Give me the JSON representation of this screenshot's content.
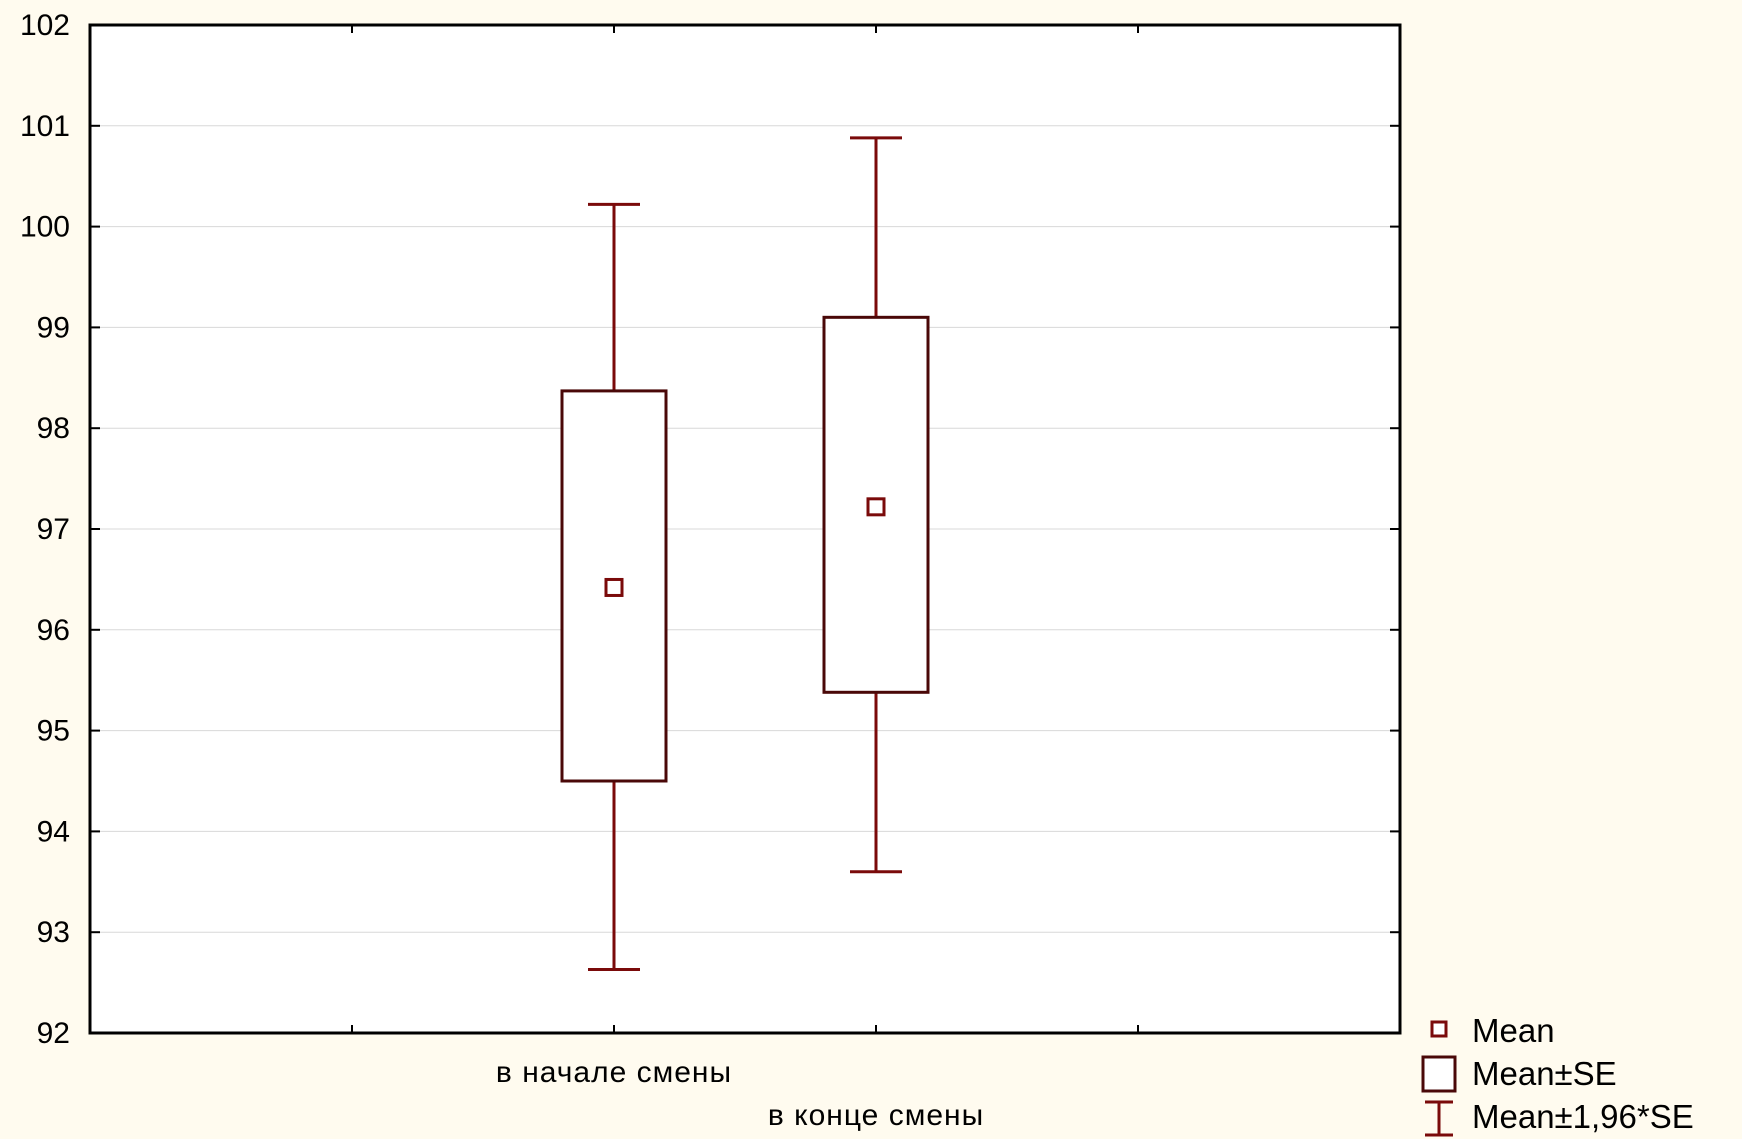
{
  "chart_data": {
    "type": "boxplot",
    "categories": [
      "в  начале смены",
      "в  конце смены"
    ],
    "y_ticks": [
      "92",
      "93",
      "94",
      "95",
      "96",
      "97",
      "98",
      "99",
      "100",
      "101",
      "102"
    ],
    "ylim": [
      92,
      102
    ],
    "grid": true,
    "series": [
      {
        "category": "в  начале смены",
        "mean": 96.42,
        "se_low": 94.5,
        "se_high": 98.37,
        "ci_low": 92.63,
        "ci_high": 100.22
      },
      {
        "category": "в  конце смены",
        "mean": 97.22,
        "se_low": 95.38,
        "se_high": 99.1,
        "ci_low": 93.6,
        "ci_high": 100.88
      }
    ],
    "legend": {
      "position": "bottom-right",
      "items": [
        "Mean",
        "Mean±SE",
        "Mean±1,96*SE"
      ]
    },
    "colors": {
      "series": "#7a0a0a",
      "box": "#4a0808",
      "grid": "#d8d8d8",
      "axis": "#000000",
      "background": "#fffbef",
      "plot": "#ffffff"
    }
  }
}
